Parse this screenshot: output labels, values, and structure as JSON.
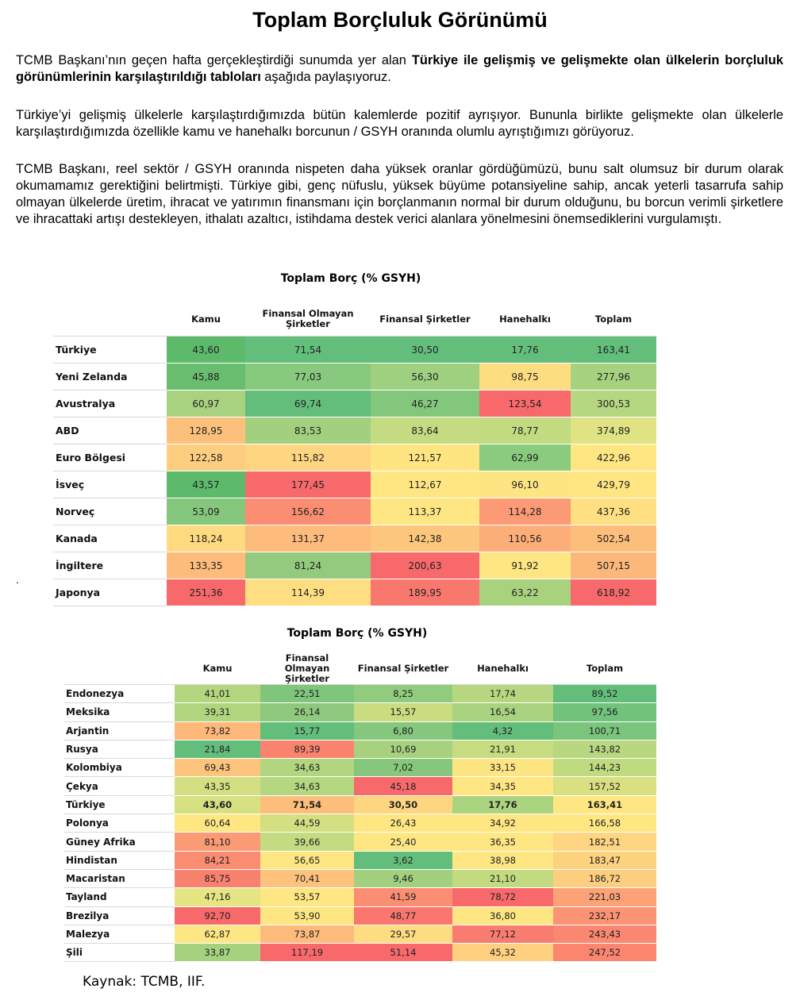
{
  "title": "Toplam Borçluluk Görünümü",
  "paragraphs": [
    {
      "before": "TCMB  Başkanı’nın geçen hafta gerçekleştirdiği sunumda yer alan ",
      "bold": "Türkiye ile gelişmiş ve gelişmekte olan ülkelerin borçluluk görünümlerinin karşılaştırıldığı tabloları",
      "after": " aşağıda paylaşıyoruz."
    },
    {
      "text": "Türkiye’yi gelişmiş ülkelerle karşılaştırdığımızda bütün kalemlerde pozitif ayrışıyor. Bununla birlikte gelişmekte olan ülkelerle karşılaştırdığımızda özellikle kamu ve hanehalkı borcunun / GSYH oranında olumlu ayrıştığımızı görüyoruz."
    },
    {
      "text": "TCMB Başkanı, reel sektör / GSYH oranında nispeten daha yüksek oranlar gördüğümüzü, bunu salt olumsuz bir durum olarak okumamamız gerektiğini belirtmişti. Türkiye gibi, genç nüfuslu, yüksek büyüme potansiyeline sahip, ancak yeterli tasarrufa sahip olmayan ülkelerde üretim, ihracat ve yatırımın finansmanı için borçlanmanın normal bir durum olduğunu, bu borcun verimli şirketlere ve ihracattaki artışı destekleyen, ithalatı azaltıcı, istihdama destek verici alanlara yönelmesini önemsediklerini vurgulamıştı."
    }
  ],
  "stray_mark": ".",
  "table1": {
    "title": "Toplam Borç (% GSYH)",
    "headers": [
      "",
      "Kamu",
      "Finansal Olmayan Şirketler",
      "Finansal Şirketler",
      "Hanehalkı",
      "Toplam"
    ],
    "rows": [
      {
        "country": "Türkiye",
        "values": [
          "43,60",
          "71,54",
          "30,50",
          "17,76",
          "163,41"
        ],
        "colors": [
          "#5dba6b",
          "#63be7b",
          "#63be7b",
          "#63be7b",
          "#63be7b"
        ]
      },
      {
        "country": "Yeni Zelanda",
        "values": [
          "45,88",
          "77,03",
          "56,30",
          "98,75",
          "277,96"
        ],
        "colors": [
          "#68bd6f",
          "#87c97d",
          "#9ed07f",
          "#fedd81",
          "#a6d27f"
        ]
      },
      {
        "country": "Avustralya",
        "values": [
          "60,97",
          "69,74",
          "46,27",
          "123,54",
          "300,53"
        ],
        "colors": [
          "#a8d27f",
          "#63be7b",
          "#83c77c",
          "#f8696b",
          "#b6d781"
        ]
      },
      {
        "country": "ABD",
        "values": [
          "128,95",
          "83,53",
          "83,64",
          "78,77",
          "374,89"
        ],
        "colors": [
          "#fdc07c",
          "#a2d07f",
          "#c5db81",
          "#c2da80",
          "#e0e383"
        ]
      },
      {
        "country": "Euro Bölgesi",
        "values": [
          "122,58",
          "115,82",
          "121,57",
          "62,99",
          "422,96"
        ],
        "colors": [
          "#fdce7f",
          "#fed580",
          "#fee582",
          "#8acb7d",
          "#fee683"
        ]
      },
      {
        "country": "İsveç",
        "values": [
          "43,57",
          "177,45",
          "112,67",
          "96,10",
          "429,79"
        ],
        "colors": [
          "#5dba6b",
          "#f8696b",
          "#fee683",
          "#fee583",
          "#fee683"
        ]
      },
      {
        "country": "Norveç",
        "values": [
          "53,09",
          "156,62",
          "113,37",
          "114,28",
          "437,36"
        ],
        "colors": [
          "#85c77c",
          "#fa8d72",
          "#fee683",
          "#fb9a74",
          "#fedf81"
        ]
      },
      {
        "country": "Kanada",
        "values": [
          "118,24",
          "131,37",
          "142,38",
          "110,56",
          "502,54"
        ],
        "colors": [
          "#fedb80",
          "#fdbc7b",
          "#fdc67d",
          "#fcae78",
          "#fdbd7b"
        ]
      },
      {
        "country": "İngiltere",
        "values": [
          "133,35",
          "81,24",
          "200,63",
          "91,92",
          "507,15"
        ],
        "colors": [
          "#fdbc7b",
          "#93ca7d",
          "#f8696b",
          "#fee682",
          "#fcb87a"
        ]
      },
      {
        "country": "Japonya",
        "values": [
          "251,36",
          "114,39",
          "189,95",
          "63,22",
          "618,92"
        ],
        "colors": [
          "#f8696b",
          "#fede81",
          "#f9786e",
          "#a9d27f",
          "#f8696b"
        ]
      }
    ]
  },
  "table2": {
    "title": "Toplam Borç (% GSYH)",
    "headers": [
      "",
      "Kamu",
      "Finansal Olmayan Şirketler",
      "Finansal Şirketler",
      "Hanehalkı",
      "Toplam"
    ],
    "highlight_row": 6,
    "rows": [
      {
        "country": "Endonezya",
        "values": [
          "41,01",
          "22,51",
          "8,25",
          "17,74",
          "89,52"
        ],
        "colors": [
          "#b4d67f",
          "#7fc57c",
          "#91cb7d",
          "#b6d77f",
          "#63be7b"
        ]
      },
      {
        "country": "Meksika",
        "values": [
          "39,31",
          "26,14",
          "15,57",
          "16,54",
          "97,56"
        ],
        "colors": [
          "#b1d57f",
          "#8ec97d",
          "#c9dc80",
          "#a9d27f",
          "#72c27c"
        ]
      },
      {
        "country": "Arjantin",
        "values": [
          "73,82",
          "15,77",
          "6,80",
          "4,32",
          "100,71"
        ],
        "colors": [
          "#fdb87a",
          "#63be7b",
          "#85c77c",
          "#63be7b",
          "#7ac47c"
        ]
      },
      {
        "country": "Rusya",
        "values": [
          "21,84",
          "89,39",
          "10,69",
          "21,91",
          "143,82"
        ],
        "colors": [
          "#63be7b",
          "#f9836f",
          "#a7d17f",
          "#c7dc80",
          "#b8d780"
        ]
      },
      {
        "country": "Kolombiya",
        "values": [
          "69,43",
          "34,63",
          "7,02",
          "33,15",
          "144,23"
        ],
        "colors": [
          "#fdc57c",
          "#b2d67f",
          "#86c77c",
          "#fee583",
          "#c0da80"
        ]
      },
      {
        "country": "Çekya",
        "values": [
          "43,35",
          "34,63",
          "45,18",
          "34,35",
          "157,52"
        ],
        "colors": [
          "#d3df81",
          "#b5d780",
          "#f8696b",
          "#fee683",
          "#dae081"
        ]
      },
      {
        "country": "Türkiye",
        "values": [
          "43,60",
          "71,54",
          "30,50",
          "17,76",
          "163,41"
        ],
        "colors": [
          "#d6e081",
          "#fdbd7b",
          "#fed580",
          "#acd380",
          "#fee683"
        ]
      },
      {
        "country": "Polonya",
        "values": [
          "60,64",
          "44,59",
          "26,43",
          "34,92",
          "166,58"
        ],
        "colors": [
          "#fee683",
          "#d3df81",
          "#fee683",
          "#fee683",
          "#fee683"
        ]
      },
      {
        "country": "Güney Afrika",
        "values": [
          "81,10",
          "39,66",
          "25,40",
          "36,35",
          "182,51"
        ],
        "colors": [
          "#fa9b75",
          "#c5db81",
          "#fee683",
          "#fee683",
          "#fed580"
        ]
      },
      {
        "country": "Hindistan",
        "values": [
          "84,21",
          "56,65",
          "3,62",
          "38,98",
          "183,47"
        ],
        "colors": [
          "#fa8c72",
          "#fee683",
          "#63be7b",
          "#fee683",
          "#fdd27f"
        ]
      },
      {
        "country": "Macaristan",
        "values": [
          "85,75",
          "70,41",
          "9,46",
          "21,10",
          "186,72"
        ],
        "colors": [
          "#f9826f",
          "#fdc27d",
          "#a2d07f",
          "#c2da80",
          "#fdce7f"
        ]
      },
      {
        "country": "Tayland",
        "values": [
          "47,16",
          "53,57",
          "41,59",
          "78,72",
          "221,03"
        ],
        "colors": [
          "#e6e583",
          "#fee683",
          "#fa8e73",
          "#f8696b",
          "#fca277"
        ]
      },
      {
        "country": "Brezilya",
        "values": [
          "92,70",
          "53,90",
          "48,77",
          "36,80",
          "232,17"
        ],
        "colors": [
          "#f8696b",
          "#fee683",
          "#f9776e",
          "#fee683",
          "#fb9374"
        ]
      },
      {
        "country": "Malezya",
        "values": [
          "62,87",
          "73,87",
          "29,57",
          "77,12",
          "243,43"
        ],
        "colors": [
          "#fee683",
          "#fdbb7b",
          "#fedc81",
          "#f97c70",
          "#fa8871"
        ]
      },
      {
        "country": "Şili",
        "values": [
          "33,87",
          "117,19",
          "51,14",
          "45,32",
          "247,52"
        ],
        "colors": [
          "#a6d27f",
          "#f8696b",
          "#f8696b",
          "#fed07f",
          "#fa8670"
        ]
      }
    ]
  },
  "source": "Kaynak: TCMB, IIF."
}
